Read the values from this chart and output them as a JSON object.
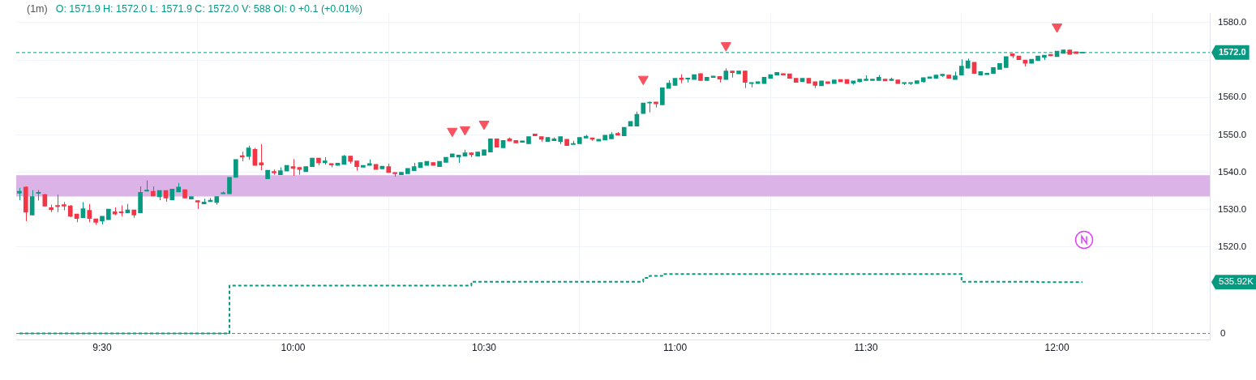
{
  "chart_data": {
    "type": "candlestick",
    "title": "(1m)",
    "subtitle": "O: 1571.9 H: 1572.0 L: 1571.9 C: 1572.0 V: 588 OI: 0 +0.1 (+0.01%)",
    "x": [
      9.2833,
      9.3,
      9.3167,
      9.3333,
      9.35,
      9.3667,
      9.3833,
      9.4,
      9.4167,
      9.4333,
      9.45,
      9.4667,
      9.4833,
      9.5,
      9.5167,
      9.5333,
      9.55,
      9.5667,
      9.5833,
      9.6,
      9.6167,
      9.6333,
      9.65,
      9.6667,
      9.6833,
      9.7,
      9.7167,
      9.7333,
      9.75,
      9.7667,
      9.7833,
      9.8,
      9.8167,
      9.8333,
      9.85,
      9.8667,
      9.8833,
      9.9,
      9.9167,
      9.9333,
      9.95,
      9.9667,
      9.9833,
      10,
      10.0167,
      10.0333,
      10.05,
      10.0667,
      10.0833,
      10.1,
      10.1167,
      10.1333,
      10.15,
      10.1667,
      10.1833,
      10.2,
      10.2167,
      10.2333,
      10.25,
      10.2667,
      10.2833,
      10.3,
      10.3167,
      10.3333,
      10.35,
      10.3667,
      10.3833,
      10.4,
      10.4167,
      10.4333,
      10.45,
      10.4667,
      10.4833,
      10.5,
      10.5167,
      10.5333,
      10.55,
      10.5667,
      10.5833,
      10.6,
      10.6167,
      10.6333,
      10.65,
      10.6667,
      10.6833,
      10.7,
      10.7167,
      10.7333,
      10.75,
      10.7667,
      10.7833,
      10.8,
      10.8167,
      10.8333,
      10.85,
      10.8667,
      10.8833,
      10.9,
      10.9167,
      10.9333,
      10.95,
      10.9667,
      10.9833,
      11,
      11.0167,
      11.0333,
      11.05,
      11.0667,
      11.0833,
      11.1,
      11.1167,
      11.1333,
      11.15,
      11.1667,
      11.1833,
      11.2,
      11.2167,
      11.2333,
      11.25,
      11.2667,
      11.2833,
      11.3,
      11.3167,
      11.3333,
      11.35,
      11.3667,
      11.3833,
      11.4,
      11.4167,
      11.4333,
      11.45,
      11.4667,
      11.4833,
      11.5,
      11.5167,
      11.5333,
      11.55,
      11.5667,
      11.5833,
      11.6,
      11.6167,
      11.6333,
      11.65,
      11.6667,
      11.6833,
      11.7,
      11.7167,
      11.7333,
      11.75,
      11.7667,
      11.7833,
      11.8,
      11.8167,
      11.8333,
      11.85,
      11.8667,
      11.8833,
      11.9,
      11.9167,
      11.9333,
      11.95,
      11.9667,
      11.9833,
      12,
      12.0167,
      12.0333,
      12.05,
      12.0667
    ],
    "ohlc": [
      [
        1534.4,
        1535.8,
        1532.5,
        1534.9
      ],
      [
        1536.0,
        1536.2,
        1526.9,
        1529.3
      ],
      [
        1528.5,
        1535.2,
        1528.5,
        1533.5
      ],
      [
        1534.3,
        1535.2,
        1532.4,
        1534.6
      ],
      [
        1534.0,
        1534.2,
        1530.9,
        1530.9
      ],
      [
        1530.5,
        1531.3,
        1529.3,
        1530.0
      ],
      [
        1531.1,
        1534.0,
        1529.3,
        1530.8
      ],
      [
        1531.3,
        1532.0,
        1529.8,
        1530.9
      ],
      [
        1531.0,
        1531.2,
        1527.9,
        1528.2
      ],
      [
        1528.8,
        1528.8,
        1526.6,
        1527.6
      ],
      [
        1527.8,
        1532.0,
        1527.8,
        1530.2
      ],
      [
        1529.8,
        1531.5,
        1526.6,
        1527.6
      ],
      [
        1527.5,
        1527.5,
        1525.9,
        1526.6
      ],
      [
        1526.9,
        1528.2,
        1526.0,
        1528.2
      ],
      [
        1527.3,
        1530.1,
        1527.3,
        1530.1
      ],
      [
        1529.4,
        1530.6,
        1528.5,
        1528.8
      ],
      [
        1529.4,
        1531.1,
        1528.2,
        1529.1
      ],
      [
        1529.1,
        1531.5,
        1529.1,
        1529.9
      ],
      [
        1529.9,
        1529.9,
        1527.8,
        1528.5
      ],
      [
        1529.1,
        1536.2,
        1529.1,
        1534.6
      ],
      [
        1534.9,
        1537.8,
        1534.9,
        1535.2
      ],
      [
        1534.9,
        1536.2,
        1533.6,
        1533.6
      ],
      [
        1533.4,
        1535.1,
        1532.5,
        1535.1
      ],
      [
        1535.1,
        1535.1,
        1532.1,
        1533.1
      ],
      [
        1532.6,
        1535.5,
        1532.6,
        1535.5
      ],
      [
        1534.7,
        1537.1,
        1534.7,
        1536.0
      ],
      [
        1535.3,
        1535.3,
        1533.1,
        1533.1
      ],
      [
        1532.8,
        1533.5,
        1532.8,
        1533.5
      ],
      [
        1532.4,
        1532.4,
        1530.2,
        1532.0
      ],
      [
        1531.5,
        1532.9,
        1531.5,
        1532.0
      ],
      [
        1532.1,
        1533.1,
        1532.1,
        1532.5
      ],
      [
        1531.9,
        1533.5,
        1531.3,
        1533.5
      ],
      [
        1534.2,
        1534.8,
        1534.2,
        1534.5
      ],
      [
        1534.2,
        1538.6,
        1534.2,
        1538.6
      ],
      [
        1538.6,
        1543.4,
        1538.6,
        1543.4
      ],
      [
        1544.4,
        1545.5,
        1542.9,
        1544.0
      ],
      [
        1544.2,
        1547.1,
        1543.3,
        1546.5
      ],
      [
        1546.1,
        1546.5,
        1541.8,
        1541.8
      ],
      [
        1542.5,
        1547.5,
        1540.5,
        1541.9
      ],
      [
        1538.2,
        1540.5,
        1538.2,
        1540.5
      ],
      [
        1540.2,
        1540.7,
        1539.3,
        1539.8
      ],
      [
        1539.3,
        1541.3,
        1539.3,
        1540.4
      ],
      [
        1540.3,
        1541.8,
        1540.3,
        1541.8
      ],
      [
        1541.5,
        1543.5,
        1539.0,
        1541.0
      ],
      [
        1541.3,
        1541.3,
        1539.3,
        1540.7
      ],
      [
        1540.1,
        1541.5,
        1540.1,
        1541.5
      ],
      [
        1541.5,
        1543.8,
        1541.5,
        1543.8
      ],
      [
        1543.8,
        1543.8,
        1541.8,
        1542.5
      ],
      [
        1542.5,
        1544.0,
        1542.0,
        1543.0
      ],
      [
        1542.3,
        1542.3,
        1541.3,
        1541.9
      ],
      [
        1541.8,
        1542.4,
        1541.8,
        1542.4
      ],
      [
        1542.1,
        1544.6,
        1542.1,
        1544.3
      ],
      [
        1544.3,
        1544.3,
        1542.3,
        1542.9
      ],
      [
        1543.0,
        1543.0,
        1540.4,
        1541.5
      ],
      [
        1541.3,
        1541.8,
        1541.3,
        1541.8
      ],
      [
        1541.8,
        1543.4,
        1541.8,
        1542.3
      ],
      [
        1542.1,
        1542.1,
        1540.7,
        1540.7
      ],
      [
        1540.9,
        1541.6,
        1540.9,
        1541.6
      ],
      [
        1541.5,
        1542.3,
        1539.9,
        1539.9
      ],
      [
        1539.9,
        1539.9,
        1538.8,
        1539.6
      ],
      [
        1539.3,
        1540.0,
        1539.3,
        1540.0
      ],
      [
        1539.6,
        1541.0,
        1539.6,
        1541.0
      ],
      [
        1540.4,
        1542.5,
        1540.4,
        1541.5
      ],
      [
        1541.2,
        1542.6,
        1541.2,
        1542.6
      ],
      [
        1541.8,
        1542.9,
        1541.8,
        1542.9
      ],
      [
        1542.6,
        1542.6,
        1541.8,
        1541.8
      ],
      [
        1541.5,
        1542.9,
        1541.5,
        1542.9
      ],
      [
        1542.6,
        1544.0,
        1542.6,
        1544.0
      ],
      [
        1544.0,
        1544.9,
        1544.0,
        1544.9
      ],
      [
        1544.0,
        1544.6,
        1542.5,
        1544.6
      ],
      [
        1544.3,
        1546.0,
        1544.3,
        1545.2
      ],
      [
        1545.2,
        1545.2,
        1544.0,
        1544.7
      ],
      [
        1544.3,
        1545.4,
        1544.3,
        1545.4
      ],
      [
        1544.5,
        1546.0,
        1544.5,
        1546.0
      ],
      [
        1545.4,
        1548.9,
        1545.4,
        1548.9
      ],
      [
        1548.9,
        1548.9,
        1546.7,
        1546.7
      ],
      [
        1546.5,
        1548.5,
        1546.5,
        1548.5
      ],
      [
        1548.9,
        1549.3,
        1548.3,
        1548.3
      ],
      [
        1548.5,
        1548.5,
        1547.8,
        1547.8
      ],
      [
        1548.0,
        1548.4,
        1548.0,
        1548.4
      ],
      [
        1547.6,
        1549.5,
        1547.6,
        1549.5
      ],
      [
        1550.2,
        1550.2,
        1549.7,
        1549.7
      ],
      [
        1549.5,
        1549.5,
        1548.2,
        1548.8
      ],
      [
        1548.2,
        1549.3,
        1548.2,
        1549.3
      ],
      [
        1548.4,
        1549.3,
        1548.4,
        1548.9
      ],
      [
        1548.2,
        1549.5,
        1547.5,
        1549.5
      ],
      [
        1548.8,
        1548.8,
        1547.1,
        1547.1
      ],
      [
        1547.4,
        1548.4,
        1547.4,
        1547.7
      ],
      [
        1547.6,
        1549.3,
        1547.6,
        1549.3
      ],
      [
        1549.1,
        1550.0,
        1549.1,
        1549.6
      ],
      [
        1549.2,
        1549.2,
        1548.4,
        1548.8
      ],
      [
        1548.3,
        1548.8,
        1548.3,
        1548.8
      ],
      [
        1548.6,
        1549.9,
        1548.6,
        1549.9
      ],
      [
        1548.9,
        1550.7,
        1548.9,
        1550.1
      ],
      [
        1550.4,
        1550.7,
        1549.9,
        1549.9
      ],
      [
        1549.7,
        1552.0,
        1549.7,
        1552.0
      ],
      [
        1552.3,
        1553.6,
        1552.3,
        1553.6
      ],
      [
        1552.3,
        1556.2,
        1552.3,
        1555.5
      ],
      [
        1555.7,
        1558.5,
        1555.7,
        1558.5
      ],
      [
        1558.5,
        1558.9,
        1556.0,
        1558.6
      ],
      [
        1558.8,
        1558.8,
        1557.3,
        1558.3
      ],
      [
        1558.0,
        1562.6,
        1558.0,
        1562.6
      ],
      [
        1562.4,
        1564.6,
        1562.4,
        1563.8
      ],
      [
        1563.2,
        1565.1,
        1563.2,
        1565.1
      ],
      [
        1565.2,
        1566.2,
        1563.8,
        1564.8
      ],
      [
        1564.9,
        1565.2,
        1564.0,
        1565.2
      ],
      [
        1564.8,
        1566.1,
        1564.8,
        1566.1
      ],
      [
        1566.4,
        1566.4,
        1564.5,
        1564.5
      ],
      [
        1564.5,
        1565.4,
        1564.5,
        1565.4
      ],
      [
        1565.3,
        1565.7,
        1565.3,
        1565.7
      ],
      [
        1565.6,
        1565.6,
        1564.0,
        1564.9
      ],
      [
        1564.8,
        1567.8,
        1564.8,
        1567.1
      ],
      [
        1567.1,
        1567.1,
        1565.3,
        1566.6
      ],
      [
        1566.3,
        1567.1,
        1566.3,
        1567.1
      ],
      [
        1567.1,
        1567.1,
        1562.5,
        1564.0
      ],
      [
        1563.7,
        1564.0,
        1562.7,
        1564.0
      ],
      [
        1563.7,
        1564.2,
        1563.7,
        1564.2
      ],
      [
        1563.7,
        1565.4,
        1563.7,
        1565.4
      ],
      [
        1565.1,
        1566.1,
        1565.1,
        1566.1
      ],
      [
        1566.0,
        1566.7,
        1566.0,
        1566.7
      ],
      [
        1566.4,
        1566.4,
        1566.0,
        1566.0
      ],
      [
        1566.3,
        1566.3,
        1565.1,
        1565.1
      ],
      [
        1565.1,
        1565.1,
        1564.0,
        1564.0
      ],
      [
        1564.2,
        1565.1,
        1564.2,
        1565.1
      ],
      [
        1565.1,
        1565.1,
        1563.8,
        1563.8
      ],
      [
        1564.2,
        1564.2,
        1562.5,
        1563.2
      ],
      [
        1563.1,
        1564.4,
        1563.1,
        1564.4
      ],
      [
        1564.2,
        1564.2,
        1563.7,
        1563.7
      ],
      [
        1563.7,
        1564.7,
        1563.7,
        1564.7
      ],
      [
        1564.8,
        1564.8,
        1564.2,
        1564.2
      ],
      [
        1564.8,
        1564.8,
        1563.7,
        1563.7
      ],
      [
        1563.8,
        1564.4,
        1563.4,
        1564.4
      ],
      [
        1564.2,
        1564.9,
        1564.0,
        1564.9
      ],
      [
        1564.5,
        1565.9,
        1564.5,
        1564.9
      ],
      [
        1564.5,
        1564.9,
        1564.5,
        1564.9
      ],
      [
        1564.5,
        1566.0,
        1564.5,
        1565.4
      ],
      [
        1564.9,
        1564.9,
        1564.4,
        1564.4
      ],
      [
        1564.5,
        1565.3,
        1564.5,
        1564.9
      ],
      [
        1564.7,
        1564.7,
        1563.7,
        1563.7
      ],
      [
        1563.7,
        1564.0,
        1563.3,
        1564.0
      ],
      [
        1563.7,
        1564.0,
        1563.3,
        1564.0
      ],
      [
        1563.7,
        1564.5,
        1563.7,
        1564.5
      ],
      [
        1564.2,
        1565.3,
        1563.9,
        1565.3
      ],
      [
        1565.1,
        1565.5,
        1565.1,
        1565.5
      ],
      [
        1565.1,
        1566.0,
        1565.1,
        1566.0
      ],
      [
        1565.8,
        1566.2,
        1565.5,
        1566.2
      ],
      [
        1566.0,
        1566.0,
        1565.1,
        1565.1
      ],
      [
        1564.8,
        1566.9,
        1564.8,
        1565.8
      ],
      [
        1566.0,
        1570.2,
        1566.0,
        1568.4
      ],
      [
        1567.8,
        1570.4,
        1567.8,
        1569.8
      ],
      [
        1569.4,
        1569.4,
        1566.4,
        1566.4
      ],
      [
        1566.0,
        1566.9,
        1566.0,
        1566.9
      ],
      [
        1566.1,
        1566.5,
        1566.1,
        1566.5
      ],
      [
        1566.4,
        1568.0,
        1566.4,
        1568.0
      ],
      [
        1567.5,
        1569.1,
        1567.5,
        1569.1
      ],
      [
        1568.0,
        1570.9,
        1568.0,
        1570.9
      ],
      [
        1571.7,
        1571.7,
        1570.5,
        1571.1
      ],
      [
        1571.1,
        1571.1,
        1570.1,
        1570.1
      ],
      [
        1570.0,
        1570.0,
        1568.3,
        1569.1
      ],
      [
        1569.1,
        1570.2,
        1569.1,
        1570.2
      ],
      [
        1569.8,
        1571.1,
        1569.8,
        1571.1
      ],
      [
        1570.7,
        1571.3,
        1570.0,
        1571.3
      ],
      [
        1571.5,
        1571.5,
        1571.1,
        1571.1
      ],
      [
        1570.9,
        1572.4,
        1570.9,
        1572.4
      ],
      [
        1571.8,
        1572.7,
        1571.8,
        1572.7
      ],
      [
        1572.7,
        1572.7,
        1571.5,
        1571.5
      ],
      [
        1572.2,
        1572.2,
        1571.7,
        1571.7
      ],
      [
        1571.9,
        1572.0,
        1571.9,
        1572.0
      ]
    ],
    "series": [
      {
        "type": "scatter",
        "color": "#f7525f",
        "marker": "triangle",
        "x": [
          10.4167,
          10.45,
          10.5,
          10.9167,
          11.1333,
          12.0
        ],
        "values": [
          1551.0,
          1551.4,
          1552.9,
          1564.9,
          1573.9,
          1578.9
        ]
      },
      {
        "type": "step",
        "axis": "y2",
        "color": "#089981",
        "line_style": "dashed",
        "x": [
          9.2833,
          9.8333,
          9.85,
          10.4667,
          10.4833,
          10.9167,
          10.9333,
          10.9667,
          11.75,
          11.7667,
          11.95,
          12.0667
        ],
        "values": [
          0,
          0,
          500000,
          500000,
          540000,
          540000,
          580000,
          600000,
          620000,
          540000,
          540000,
          535920
        ]
      }
    ],
    "xlim": [
      9.275,
      12.4
    ],
    "xticks": [
      {
        "value": 9.5,
        "label": "9:30"
      },
      {
        "value": 10,
        "label": "10:00"
      },
      {
        "value": 10.5,
        "label": "10:30"
      },
      {
        "value": 11,
        "label": "11:00"
      },
      {
        "value": 11.5,
        "label": "11:30"
      },
      {
        "value": 12,
        "label": "12:00"
      }
    ],
    "ylim": [
      1495.1,
      1582.4
    ],
    "yticks": [
      {
        "value": 1520,
        "label": "1520.0"
      },
      {
        "value": 1530,
        "label": "1530.0"
      },
      {
        "value": 1540,
        "label": "1540.0"
      },
      {
        "value": 1550,
        "label": "1550.0"
      },
      {
        "value": 1560,
        "label": "1560.0"
      },
      {
        "value": 1570,
        "label": null
      },
      {
        "value": 1580,
        "label": "1580.0"
      }
    ],
    "y2lim": [
      -68000,
      3335000
    ],
    "y2ticks": [
      0,
      {
        "value": 535920,
        "label": "535.92K"
      }
    ],
    "bands": [
      {
        "axis": "y",
        "from": 1533.5,
        "to": 1539.2,
        "color": "#dbb3e6"
      }
    ],
    "ref_lines": [
      {
        "axis": "y",
        "value": 1572,
        "label": "1572.0",
        "color": "#089981",
        "line_style": "dashed"
      },
      {
        "axis": "y2",
        "value": 0,
        "color": "#b0683a",
        "line_style": "dashed"
      }
    ],
    "grid": true
  }
}
